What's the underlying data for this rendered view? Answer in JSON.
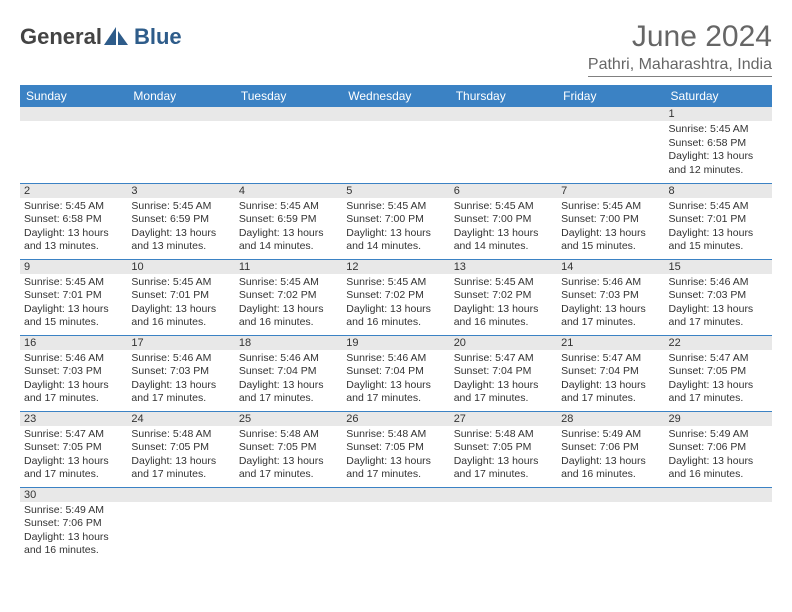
{
  "brand": {
    "text1": "General",
    "text2": "Blue"
  },
  "colors": {
    "header_blue": "#3b82c4",
    "light_gray": "#e8e8e8",
    "border_gray": "#808080",
    "title_gray": "#666666",
    "logo_blue": "#2e5c8a"
  },
  "title": "June 2024",
  "location": "Pathri, Maharashtra, India",
  "day_headers": [
    "Sunday",
    "Monday",
    "Tuesday",
    "Wednesday",
    "Thursday",
    "Friday",
    "Saturday"
  ],
  "weeks": [
    [
      null,
      null,
      null,
      null,
      null,
      null,
      {
        "num": "1",
        "sunrise": "5:45 AM",
        "sunset": "6:58 PM",
        "daylight_h": "13",
        "daylight_m": "12"
      }
    ],
    [
      {
        "num": "2",
        "sunrise": "5:45 AM",
        "sunset": "6:58 PM",
        "daylight_h": "13",
        "daylight_m": "13"
      },
      {
        "num": "3",
        "sunrise": "5:45 AM",
        "sunset": "6:59 PM",
        "daylight_h": "13",
        "daylight_m": "13"
      },
      {
        "num": "4",
        "sunrise": "5:45 AM",
        "sunset": "6:59 PM",
        "daylight_h": "13",
        "daylight_m": "14"
      },
      {
        "num": "5",
        "sunrise": "5:45 AM",
        "sunset": "7:00 PM",
        "daylight_h": "13",
        "daylight_m": "14"
      },
      {
        "num": "6",
        "sunrise": "5:45 AM",
        "sunset": "7:00 PM",
        "daylight_h": "13",
        "daylight_m": "14"
      },
      {
        "num": "7",
        "sunrise": "5:45 AM",
        "sunset": "7:00 PM",
        "daylight_h": "13",
        "daylight_m": "15"
      },
      {
        "num": "8",
        "sunrise": "5:45 AM",
        "sunset": "7:01 PM",
        "daylight_h": "13",
        "daylight_m": "15"
      }
    ],
    [
      {
        "num": "9",
        "sunrise": "5:45 AM",
        "sunset": "7:01 PM",
        "daylight_h": "13",
        "daylight_m": "15"
      },
      {
        "num": "10",
        "sunrise": "5:45 AM",
        "sunset": "7:01 PM",
        "daylight_h": "13",
        "daylight_m": "16"
      },
      {
        "num": "11",
        "sunrise": "5:45 AM",
        "sunset": "7:02 PM",
        "daylight_h": "13",
        "daylight_m": "16"
      },
      {
        "num": "12",
        "sunrise": "5:45 AM",
        "sunset": "7:02 PM",
        "daylight_h": "13",
        "daylight_m": "16"
      },
      {
        "num": "13",
        "sunrise": "5:45 AM",
        "sunset": "7:02 PM",
        "daylight_h": "13",
        "daylight_m": "16"
      },
      {
        "num": "14",
        "sunrise": "5:46 AM",
        "sunset": "7:03 PM",
        "daylight_h": "13",
        "daylight_m": "17"
      },
      {
        "num": "15",
        "sunrise": "5:46 AM",
        "sunset": "7:03 PM",
        "daylight_h": "13",
        "daylight_m": "17"
      }
    ],
    [
      {
        "num": "16",
        "sunrise": "5:46 AM",
        "sunset": "7:03 PM",
        "daylight_h": "13",
        "daylight_m": "17"
      },
      {
        "num": "17",
        "sunrise": "5:46 AM",
        "sunset": "7:03 PM",
        "daylight_h": "13",
        "daylight_m": "17"
      },
      {
        "num": "18",
        "sunrise": "5:46 AM",
        "sunset": "7:04 PM",
        "daylight_h": "13",
        "daylight_m": "17"
      },
      {
        "num": "19",
        "sunrise": "5:46 AM",
        "sunset": "7:04 PM",
        "daylight_h": "13",
        "daylight_m": "17"
      },
      {
        "num": "20",
        "sunrise": "5:47 AM",
        "sunset": "7:04 PM",
        "daylight_h": "13",
        "daylight_m": "17"
      },
      {
        "num": "21",
        "sunrise": "5:47 AM",
        "sunset": "7:04 PM",
        "daylight_h": "13",
        "daylight_m": "17"
      },
      {
        "num": "22",
        "sunrise": "5:47 AM",
        "sunset": "7:05 PM",
        "daylight_h": "13",
        "daylight_m": "17"
      }
    ],
    [
      {
        "num": "23",
        "sunrise": "5:47 AM",
        "sunset": "7:05 PM",
        "daylight_h": "13",
        "daylight_m": "17"
      },
      {
        "num": "24",
        "sunrise": "5:48 AM",
        "sunset": "7:05 PM",
        "daylight_h": "13",
        "daylight_m": "17"
      },
      {
        "num": "25",
        "sunrise": "5:48 AM",
        "sunset": "7:05 PM",
        "daylight_h": "13",
        "daylight_m": "17"
      },
      {
        "num": "26",
        "sunrise": "5:48 AM",
        "sunset": "7:05 PM",
        "daylight_h": "13",
        "daylight_m": "17"
      },
      {
        "num": "27",
        "sunrise": "5:48 AM",
        "sunset": "7:05 PM",
        "daylight_h": "13",
        "daylight_m": "17"
      },
      {
        "num": "28",
        "sunrise": "5:49 AM",
        "sunset": "7:06 PM",
        "daylight_h": "13",
        "daylight_m": "16"
      },
      {
        "num": "29",
        "sunrise": "5:49 AM",
        "sunset": "7:06 PM",
        "daylight_h": "13",
        "daylight_m": "16"
      }
    ],
    [
      {
        "num": "30",
        "sunrise": "5:49 AM",
        "sunset": "7:06 PM",
        "daylight_h": "13",
        "daylight_m": "16"
      },
      null,
      null,
      null,
      null,
      null,
      null
    ]
  ],
  "labels": {
    "sunrise": "Sunrise:",
    "sunset": "Sunset:",
    "daylight_prefix": "Daylight:",
    "hours_word": "hours",
    "and_word": "and",
    "minutes_word": "minutes."
  }
}
